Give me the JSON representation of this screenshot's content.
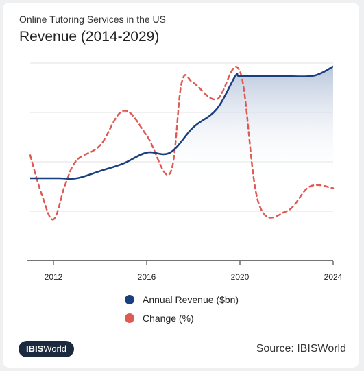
{
  "header": {
    "subtitle": "Online Tutoring Services in the US",
    "title": "Revenue (2014-2029)"
  },
  "legend": {
    "revenue_label": "Annual Revenue ($bn)",
    "change_label": "Change (%)"
  },
  "footer": {
    "logo_bold": "IBIS",
    "logo_rest": "World",
    "source": "Source: IBISWorld"
  },
  "colors": {
    "revenue": "#1a3f7e",
    "change": "#e05a54",
    "area": "#c3cee0"
  },
  "chart_data": {
    "type": "line",
    "x_ticks": [
      "2012",
      "2016",
      "2020",
      "2024"
    ],
    "xlim": [
      2011,
      2024
    ],
    "series": [
      {
        "name": "Annual Revenue ($bn)",
        "style": "solid",
        "fill": "area",
        "points": [
          [
            2011,
            1.0
          ],
          [
            2012.2,
            1.0
          ],
          [
            2013,
            1.0
          ],
          [
            2014,
            1.22
          ],
          [
            2015,
            1.45
          ],
          [
            2016,
            1.78
          ],
          [
            2017,
            1.78
          ],
          [
            2018,
            2.55
          ],
          [
            2019,
            3.1
          ],
          [
            2019.8,
            4.1
          ],
          [
            2020,
            4.1
          ],
          [
            2021,
            4.1
          ],
          [
            2022,
            4.1
          ],
          [
            2023,
            4.1
          ],
          [
            2023.5,
            4.2
          ],
          [
            2024,
            4.4
          ]
        ]
      },
      {
        "name": "Change (%)",
        "style": "dashed",
        "points": [
          [
            2011,
            1.7
          ],
          [
            2011.5,
            0.5
          ],
          [
            2012,
            -0.25
          ],
          [
            2012.5,
            0.8
          ],
          [
            2013,
            1.55
          ],
          [
            2014,
            2.0
          ],
          [
            2015,
            3.05
          ],
          [
            2016,
            2.3
          ],
          [
            2017,
            1.15
          ],
          [
            2017.5,
            3.9
          ],
          [
            2018,
            3.9
          ],
          [
            2019,
            3.4
          ],
          [
            2020,
            4.25
          ],
          [
            2020.8,
            0.25
          ],
          [
            2022,
            0.0
          ],
          [
            2023,
            0.75
          ],
          [
            2024,
            0.7
          ]
        ]
      }
    ]
  }
}
